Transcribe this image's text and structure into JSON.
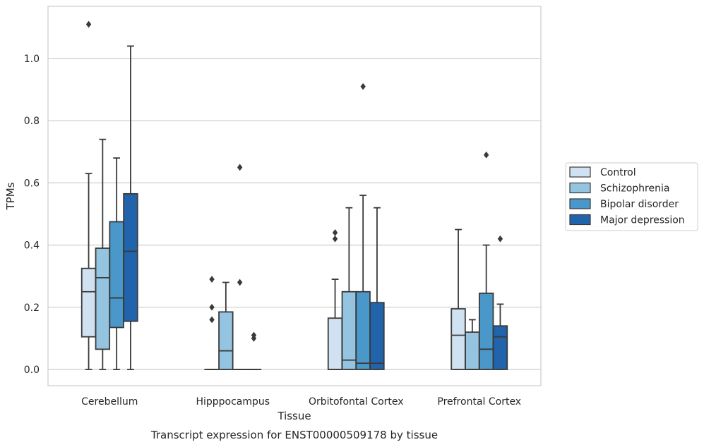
{
  "chart_data": {
    "type": "boxplot",
    "title": "",
    "caption": "Transcript expression for ENST00000509178 by tissue",
    "xlabel": "Tissue",
    "ylabel": "TPMs",
    "ylim": [
      -0.05,
      1.17
    ],
    "yticks": [
      "0.0",
      "0.2",
      "0.4",
      "0.6",
      "0.8",
      "1.0"
    ],
    "grid": "horizontal",
    "legend_position": "right",
    "categories": [
      "Cerebellum",
      "Hipppocampus",
      "Orbitofontal Cortex",
      "Prefrontal Cortex"
    ],
    "series": [
      {
        "name": "Control",
        "color": "#d0e1f2",
        "boxes": [
          {
            "q1": 0.105,
            "median": 0.25,
            "q3": 0.325,
            "whislo": 0.0,
            "whishi": 0.63,
            "fliers": [
              1.11
            ]
          },
          {
            "q1": 0.0,
            "median": 0.0,
            "q3": 0.0,
            "whislo": 0.0,
            "whishi": 0.0,
            "fliers": [
              0.29,
              0.2,
              0.16
            ]
          },
          {
            "q1": 0.0,
            "median": 0.0,
            "q3": 0.165,
            "whislo": 0.0,
            "whishi": 0.29,
            "fliers": [
              0.44,
              0.42
            ]
          },
          {
            "q1": 0.0,
            "median": 0.11,
            "q3": 0.195,
            "whislo": 0.0,
            "whishi": 0.45,
            "fliers": []
          }
        ]
      },
      {
        "name": "Schizophrenia",
        "color": "#94c4df",
        "boxes": [
          {
            "q1": 0.065,
            "median": 0.295,
            "q3": 0.39,
            "whislo": 0.0,
            "whishi": 0.74,
            "fliers": []
          },
          {
            "q1": 0.0,
            "median": 0.06,
            "q3": 0.185,
            "whislo": 0.0,
            "whishi": 0.28,
            "fliers": []
          },
          {
            "q1": 0.0,
            "median": 0.03,
            "q3": 0.25,
            "whislo": 0.0,
            "whishi": 0.52,
            "fliers": []
          },
          {
            "q1": 0.0,
            "median": 0.0,
            "q3": 0.12,
            "whislo": 0.0,
            "whishi": 0.16,
            "fliers": []
          }
        ]
      },
      {
        "name": "Bipolar disorder",
        "color": "#4a98c9",
        "boxes": [
          {
            "q1": 0.135,
            "median": 0.23,
            "q3": 0.475,
            "whislo": 0.0,
            "whishi": 0.68,
            "fliers": []
          },
          {
            "q1": 0.0,
            "median": 0.0,
            "q3": 0.0,
            "whislo": 0.0,
            "whishi": 0.0,
            "fliers": [
              0.65,
              0.28
            ]
          },
          {
            "q1": 0.0,
            "median": 0.02,
            "q3": 0.25,
            "whislo": 0.0,
            "whishi": 0.56,
            "fliers": [
              0.91
            ]
          },
          {
            "q1": 0.0,
            "median": 0.065,
            "q3": 0.245,
            "whislo": 0.0,
            "whishi": 0.4,
            "fliers": [
              0.69
            ]
          }
        ]
      },
      {
        "name": "Major depression",
        "color": "#2164ab",
        "boxes": [
          {
            "q1": 0.155,
            "median": 0.38,
            "q3": 0.565,
            "whislo": 0.0,
            "whishi": 1.04,
            "fliers": []
          },
          {
            "q1": 0.0,
            "median": 0.0,
            "q3": 0.0,
            "whislo": 0.0,
            "whishi": 0.0,
            "fliers": [
              0.11,
              0.1
            ]
          },
          {
            "q1": 0.0,
            "median": 0.02,
            "q3": 0.215,
            "whislo": 0.0,
            "whishi": 0.52,
            "fliers": []
          },
          {
            "q1": 0.0,
            "median": 0.105,
            "q3": 0.14,
            "whislo": 0.0,
            "whishi": 0.21,
            "fliers": [
              0.42
            ]
          }
        ]
      }
    ]
  }
}
